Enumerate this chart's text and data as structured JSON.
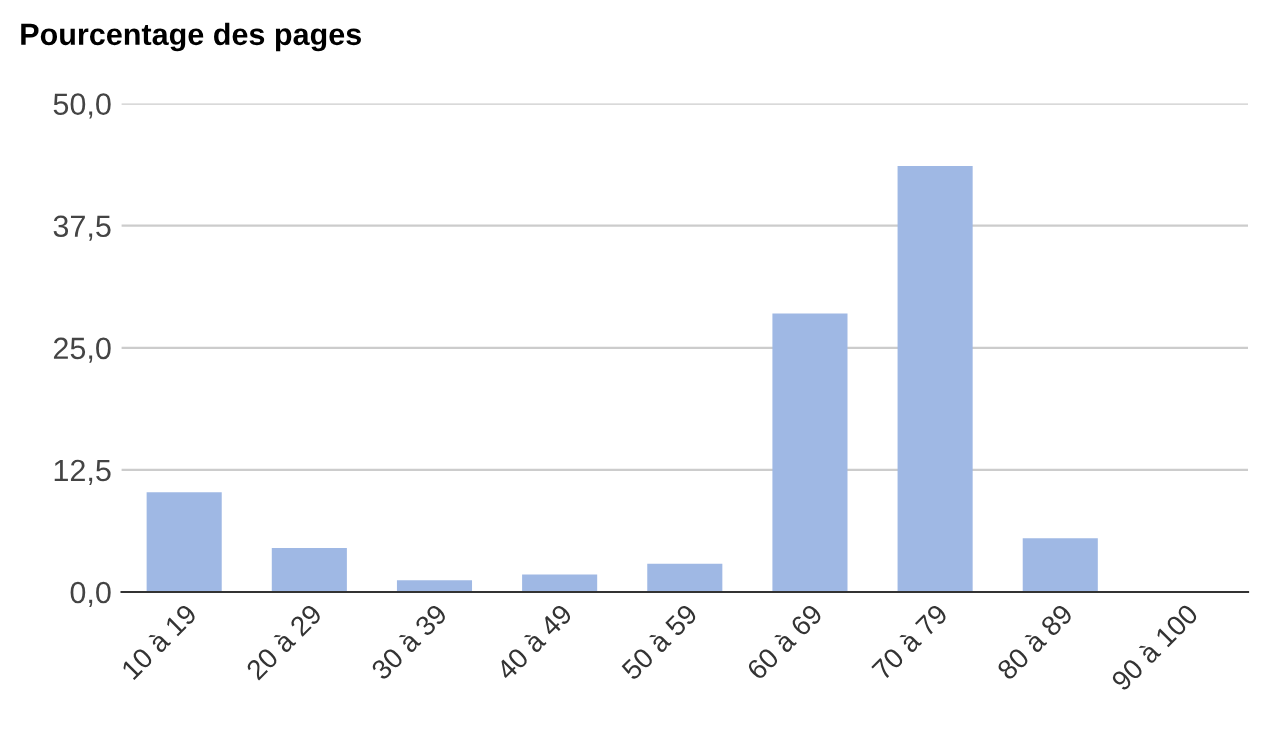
{
  "chart_data": {
    "type": "bar",
    "title": "Pourcentage des pages",
    "categories": [
      "10 à 19",
      "20 à 29",
      "30 à 39",
      "40 à 49",
      "50 à 59",
      "60 à 69",
      "70 à 79",
      "80 à 89",
      "90 à 100"
    ],
    "values": [
      10.2,
      4.5,
      1.2,
      1.8,
      2.9,
      28.5,
      43.6,
      5.5,
      null
    ],
    "color": "#9fb8e4",
    "ylim": [
      0,
      50
    ],
    "yticks": [
      {
        "value": 0,
        "label": "0,0"
      },
      {
        "value": 12.5,
        "label": "12,5"
      },
      {
        "value": 25,
        "label": "25,0"
      },
      {
        "value": 37.5,
        "label": "37,5"
      },
      {
        "value": 50,
        "label": "50,0"
      }
    ],
    "grid": "y"
  }
}
